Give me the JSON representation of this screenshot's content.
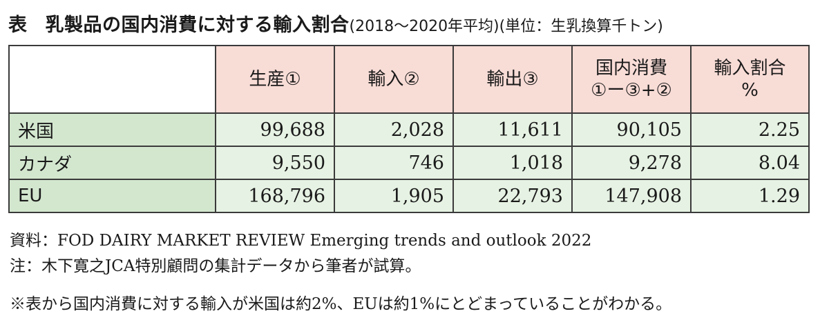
{
  "title": {
    "label": "表",
    "main": "乳製品の国内消費に対する輸入割合",
    "sub": "(2018〜2020年平均)(単位：生乳換算千トン)"
  },
  "table": {
    "headers": {
      "production": "生産①",
      "imports": "輸入②",
      "exports": "輸出③",
      "consumption_line1": "国内消費",
      "consumption_line2": "①ー③+②",
      "ratio_line1": "輸入割合",
      "ratio_line2": "%"
    },
    "rows": [
      {
        "country": "米国",
        "production": "99,688",
        "imports": "2,028",
        "exports": "11,611",
        "consumption": "90,105",
        "ratio": "2.25"
      },
      {
        "country": "カナダ",
        "production": "9,550",
        "imports": "746",
        "exports": "1,018",
        "consumption": "9,278",
        "ratio": "8.04"
      },
      {
        "country": "EU",
        "production": "168,796",
        "imports": "1,905",
        "exports": "22,793",
        "consumption": "147,908",
        "ratio": "1.29"
      }
    ]
  },
  "notes": {
    "source": "資料：FOD DAIRY MARKET REVIEW Emerging trends and outlook 2022",
    "note": "注：木下寛之JCA特別顧問の集計データから筆者が試算。",
    "remark": "※表から国内消費に対する輸入が米国は約2%、EUは約1%にとどまっていることがわかる。"
  },
  "colors": {
    "header_bg": "#f8dcd6",
    "row_header_bg": "#d3e7cf",
    "cell_bg": "#e6f2e3"
  }
}
